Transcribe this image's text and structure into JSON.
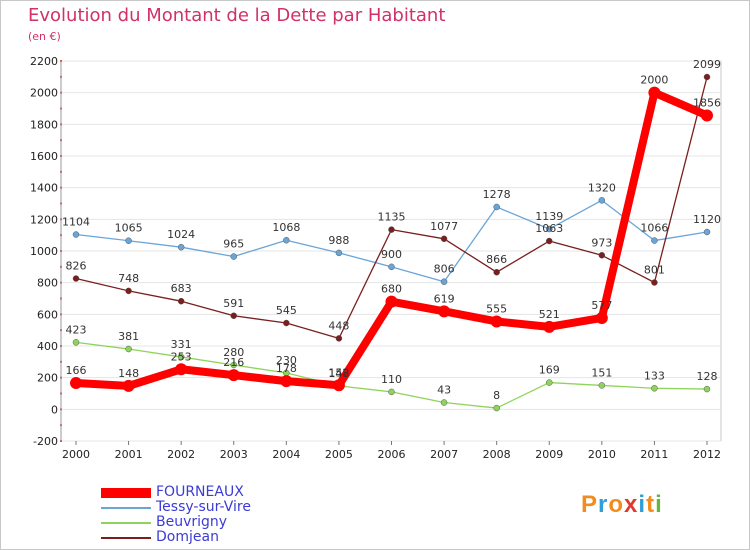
{
  "header": {
    "title": "Evolution du Montant de la Dette par Habitant",
    "subtitle": "(en €)"
  },
  "logo": {
    "letters": [
      "P",
      "r",
      "o",
      "x",
      "i",
      "t",
      "i"
    ],
    "colors": [
      "#f28c1e",
      "#2e9fd8",
      "#f28c1e",
      "#e03a2f",
      "#2e9fd8",
      "#f28c1e",
      "#62b83a"
    ]
  },
  "chart_data": {
    "type": "line",
    "title": "Evolution du Montant de la Dette par Habitant",
    "subtitle": "(en €)",
    "xlabel": "",
    "ylabel": "",
    "categories": [
      "2000",
      "2001",
      "2002",
      "2003",
      "2004",
      "2005",
      "2006",
      "2007",
      "2008",
      "2009",
      "2010",
      "2011",
      "2012"
    ],
    "ylim": [
      -200,
      2200
    ],
    "yticks": [
      -200,
      0,
      200,
      400,
      600,
      800,
      1000,
      1200,
      1400,
      1600,
      1800,
      2000,
      2200
    ],
    "grid": "horizontal",
    "legend_position": "bottom-left",
    "series": [
      {
        "name": "FOURNEAUX",
        "color": "#ff0000",
        "values": [
          166,
          148,
          253,
          216,
          178,
          152,
          680,
          619,
          555,
          521,
          577,
          2000,
          1856
        ],
        "labels": [
          "166",
          "148",
          "253",
          "216",
          "178",
          "152",
          "680",
          "619",
          "555",
          "521",
          "577",
          "2000",
          "1856"
        ]
      },
      {
        "name": "Tessy-sur-Vire",
        "color": "#6aa5d8",
        "values": [
          1104,
          1065,
          1024,
          965,
          1068,
          988,
          900,
          806,
          1278,
          1139,
          1320,
          1066,
          1120
        ],
        "labels": [
          "1104",
          "1065",
          "1024",
          "965",
          "1068",
          "988",
          "900",
          "806",
          "1278",
          "1139",
          "1320",
          "1066",
          "1120"
        ]
      },
      {
        "name": "Beuvrigny",
        "color": "#8fd45a",
        "values": [
          423,
          381,
          331,
          280,
          230,
          148,
          110,
          43,
          8,
          169,
          151,
          133,
          128
        ],
        "labels": [
          "423",
          "381",
          "331",
          "280",
          "230",
          "148",
          "110",
          "43",
          "8",
          "169",
          "151",
          "133",
          "128"
        ]
      },
      {
        "name": "Domjean",
        "color": "#7a1e1e",
        "values": [
          826,
          748,
          683,
          591,
          545,
          448,
          1135,
          1077,
          866,
          1063,
          973,
          801,
          2099
        ],
        "labels": [
          "826",
          "748",
          "683",
          "591",
          "545",
          "448",
          "1135",
          "1077",
          "866",
          "1063",
          "973",
          "801",
          "2099"
        ]
      }
    ]
  }
}
